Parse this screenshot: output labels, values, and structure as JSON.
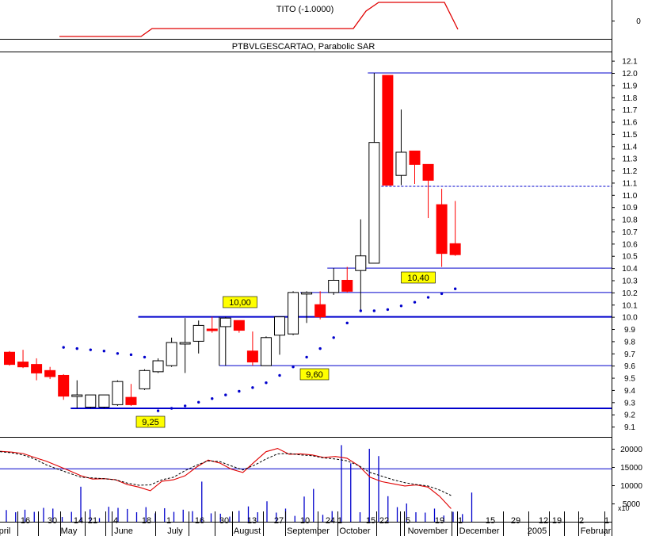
{
  "indicator_panel": {
    "title": "TITO (-1.0000)",
    "tick": "0",
    "line_color": "#e00000"
  },
  "price_panel": {
    "title": "PTBVLGESCARTAO, Parabolic SAR",
    "colors": {
      "up_body": "#ffffff",
      "down_body": "#ff0000",
      "sar": "#0000cc",
      "levels": "#0000cc"
    }
  },
  "volume_panel": {
    "y_ticks": [
      "20000",
      "15000",
      "10000",
      "5000"
    ],
    "unit": "x10"
  },
  "x_axis": {
    "labels": [
      {
        "text": "pril",
        "sep": false
      },
      {
        "text": "16",
        "sep": true
      },
      {
        "text": "30",
        "sep": true
      },
      {
        "text": "May",
        "sep": true
      },
      {
        "text": "14",
        "sep": false
      },
      {
        "text": "21",
        "sep": true
      },
      {
        "text": "4",
        "sep": true
      },
      {
        "text": "June",
        "sep": true
      },
      {
        "text": "18",
        "sep": true
      },
      {
        "text": "1",
        "sep": false
      },
      {
        "text": "July",
        "sep": true
      },
      {
        "text": "16",
        "sep": true
      },
      {
        "text": "30",
        "sep": true
      },
      {
        "text": "August",
        "sep": true
      },
      {
        "text": "13",
        "sep": true
      },
      {
        "text": "27",
        "sep": true
      },
      {
        "text": "September",
        "sep": true
      },
      {
        "text": "10",
        "sep": true
      },
      {
        "text": "24",
        "sep": false
      },
      {
        "text": "1",
        "sep": false
      },
      {
        "text": "October",
        "sep": true
      },
      {
        "text": "15",
        "sep": false
      },
      {
        "text": "22",
        "sep": true
      },
      {
        "text": "5",
        "sep": true
      },
      {
        "text": "November",
        "sep": true
      },
      {
        "text": "19",
        "sep": true
      },
      {
        "text": "1",
        "sep": false
      },
      {
        "text": "December",
        "sep": true
      },
      {
        "text": "15",
        "sep": true
      },
      {
        "text": "29",
        "sep": true
      },
      {
        "text": "12",
        "sep": false
      },
      {
        "text": "2005",
        "sep": true
      },
      {
        "text": "19",
        "sep": true
      },
      {
        "text": "2",
        "sep": false
      },
      {
        "text": "Februar",
        "sep": true
      },
      {
        "text": "1",
        "sep": false
      }
    ]
  },
  "chart_data": {
    "type": "candlestick",
    "title": "PTBVLGESCARTAO, Parabolic SAR",
    "ylim": [
      9.05,
      12.15
    ],
    "y_ticks": [
      "12.1",
      "12.0",
      "11.9",
      "11.8",
      "11.7",
      "11.6",
      "11.5",
      "11.4",
      "11.3",
      "11.2",
      "11.1",
      "11.0",
      "10.9",
      "10.8",
      "10.7",
      "10.6",
      "10.5",
      "10.4",
      "10.3",
      "10.2",
      "10.1",
      "10.0",
      "9.9",
      "9.8",
      "9.7",
      "9.6",
      "9.5",
      "9.4",
      "9.3",
      "9.2",
      "9.1"
    ],
    "candles": [
      {
        "open": 9.71,
        "high": 9.72,
        "low": 9.6,
        "close": 9.61
      },
      {
        "open": 9.63,
        "high": 9.73,
        "low": 9.58,
        "close": 9.59
      },
      {
        "open": 9.61,
        "high": 9.66,
        "low": 9.48,
        "close": 9.54
      },
      {
        "open": 9.56,
        "high": 9.59,
        "low": 9.49,
        "close": 9.51
      },
      {
        "open": 9.52,
        "high": 9.53,
        "low": 9.32,
        "close": 9.35
      },
      {
        "open": 9.35,
        "high": 9.48,
        "low": 9.25,
        "close": 9.36
      },
      {
        "open": 9.26,
        "high": 9.36,
        "low": 9.25,
        "close": 9.36
      },
      {
        "open": 9.26,
        "high": 9.36,
        "low": 9.25,
        "close": 9.36
      },
      {
        "open": 9.28,
        "high": 9.48,
        "low": 9.27,
        "close": 9.47
      },
      {
        "open": 9.34,
        "high": 9.45,
        "low": 9.27,
        "close": 9.28
      },
      {
        "open": 9.41,
        "high": 9.57,
        "low": 9.4,
        "close": 9.56
      },
      {
        "open": 9.55,
        "high": 9.66,
        "low": 9.54,
        "close": 9.64
      },
      {
        "open": 9.6,
        "high": 9.83,
        "low": 9.59,
        "close": 9.79
      },
      {
        "open": 9.79,
        "high": 9.99,
        "low": 9.54,
        "close": 9.79
      },
      {
        "open": 9.8,
        "high": 9.97,
        "low": 9.7,
        "close": 9.93
      },
      {
        "open": 9.9,
        "high": 10.0,
        "low": 9.87,
        "close": 9.89
      },
      {
        "open": 9.92,
        "high": 10.0,
        "low": 9.6,
        "close": 9.99
      },
      {
        "open": 9.97,
        "high": 9.97,
        "low": 9.87,
        "close": 9.89
      },
      {
        "open": 9.72,
        "high": 9.88,
        "low": 9.6,
        "close": 9.63
      },
      {
        "open": 9.6,
        "high": 9.84,
        "low": 9.6,
        "close": 9.83
      },
      {
        "open": 9.85,
        "high": 10.0,
        "low": 9.69,
        "close": 10.0
      },
      {
        "open": 9.86,
        "high": 10.21,
        "low": 9.85,
        "close": 10.2
      },
      {
        "open": 10.2,
        "high": 10.21,
        "low": 9.95,
        "close": 10.2
      },
      {
        "open": 10.1,
        "high": 10.21,
        "low": 9.98,
        "close": 10.0
      },
      {
        "open": 10.2,
        "high": 10.4,
        "low": 10.18,
        "close": 10.3
      },
      {
        "open": 10.3,
        "high": 10.41,
        "low": 10.2,
        "close": 10.21
      },
      {
        "open": 10.38,
        "high": 10.8,
        "low": 10.04,
        "close": 10.5
      },
      {
        "open": 10.44,
        "high": 12.0,
        "low": 10.44,
        "close": 11.43
      },
      {
        "open": 11.98,
        "high": 11.98,
        "low": 11.08,
        "close": 11.08
      },
      {
        "open": 11.16,
        "high": 11.7,
        "low": 11.08,
        "close": 11.35
      },
      {
        "open": 11.36,
        "high": 11.36,
        "low": 11.09,
        "close": 11.25
      },
      {
        "open": 11.25,
        "high": 11.25,
        "low": 10.81,
        "close": 11.12
      },
      {
        "open": 10.92,
        "high": 11.05,
        "low": 10.41,
        "close": 10.52
      },
      {
        "open": 10.6,
        "high": 10.95,
        "low": 10.5,
        "close": 10.51
      }
    ],
    "sar": [
      {
        "i": 4,
        "v": 9.75
      },
      {
        "i": 5,
        "v": 9.74
      },
      {
        "i": 6,
        "v": 9.73
      },
      {
        "i": 7,
        "v": 9.72
      },
      {
        "i": 8,
        "v": 9.7
      },
      {
        "i": 9,
        "v": 9.69
      },
      {
        "i": 10,
        "v": 9.67
      },
      {
        "i": 11,
        "v": 9.23
      },
      {
        "i": 12,
        "v": 9.25
      },
      {
        "i": 13,
        "v": 9.27
      },
      {
        "i": 14,
        "v": 9.3
      },
      {
        "i": 15,
        "v": 9.33
      },
      {
        "i": 16,
        "v": 9.36
      },
      {
        "i": 17,
        "v": 9.39
      },
      {
        "i": 18,
        "v": 9.42
      },
      {
        "i": 19,
        "v": 9.46
      },
      {
        "i": 20,
        "v": 9.52
      },
      {
        "i": 21,
        "v": 9.59
      },
      {
        "i": 22,
        "v": 9.67
      },
      {
        "i": 23,
        "v": 9.74
      },
      {
        "i": 24,
        "v": 9.83
      },
      {
        "i": 25,
        "v": 9.95
      },
      {
        "i": 26,
        "v": 10.05
      },
      {
        "i": 27,
        "v": 10.05
      },
      {
        "i": 28,
        "v": 10.06
      },
      {
        "i": 29,
        "v": 10.09
      },
      {
        "i": 30,
        "v": 10.12
      },
      {
        "i": 31,
        "v": 10.16
      },
      {
        "i": 32,
        "v": 10.19
      },
      {
        "i": 33,
        "v": 10.23
      }
    ],
    "levels": [
      {
        "value": 12.0,
        "from": 27,
        "label": ""
      },
      {
        "value": 11.07,
        "from": 28,
        "label": "",
        "dashed": true
      },
      {
        "value": 10.4,
        "from": 24,
        "label": "10,40"
      },
      {
        "value": 10.2,
        "from": 22,
        "label": ""
      },
      {
        "value": 10.0,
        "from": 10,
        "label": "10,00"
      },
      {
        "value": 9.6,
        "from": 16,
        "label": "9,60"
      },
      {
        "value": 9.25,
        "from": 5,
        "label": "9,25"
      }
    ],
    "volume": {
      "bars": [
        3200,
        2600,
        3300,
        2700,
        3800,
        3600,
        1300,
        2700,
        9600,
        3400,
        1000,
        4100,
        3800,
        3500,
        2600,
        4000,
        2300,
        3700,
        2700,
        3300,
        2900,
        11000,
        2300,
        2200,
        1400,
        3000,
        4200,
        2600,
        5600,
        2500,
        3600,
        1600,
        6900,
        9000,
        1900,
        2900,
        21000,
        16000,
        2600,
        20000,
        18000,
        7000,
        4000,
        5000,
        2600,
        2500,
        3600,
        1700,
        2700,
        2100,
        8000
      ],
      "line_a": [
        19300,
        19100,
        18700,
        17600,
        16600,
        15300,
        14000,
        12600,
        11700,
        11800,
        11500,
        10200,
        9500,
        8500,
        11100,
        11500,
        12600,
        15000,
        16900,
        16100,
        14400,
        13500,
        16400,
        19200,
        20100,
        18500,
        18600,
        18300,
        17600,
        17900,
        17400,
        15400,
        12200,
        11000,
        10400,
        9800,
        10100,
        9500,
        7000,
        3600
      ],
      "line_b": [
        19200,
        18900,
        18300,
        17200,
        15600,
        14400,
        13300,
        12200,
        12000,
        11800,
        11500,
        10600,
        10000,
        10100,
        11500,
        12200,
        14000,
        15500,
        16700,
        16500,
        15300,
        14200,
        15500,
        17200,
        18600,
        18700,
        18300,
        18100,
        17500,
        17200,
        16700,
        15400,
        13500,
        12500,
        11500,
        10700,
        10200,
        9800,
        8700,
        7200
      ],
      "ref": 14500,
      "ylim": [
        0,
        23000
      ]
    }
  }
}
